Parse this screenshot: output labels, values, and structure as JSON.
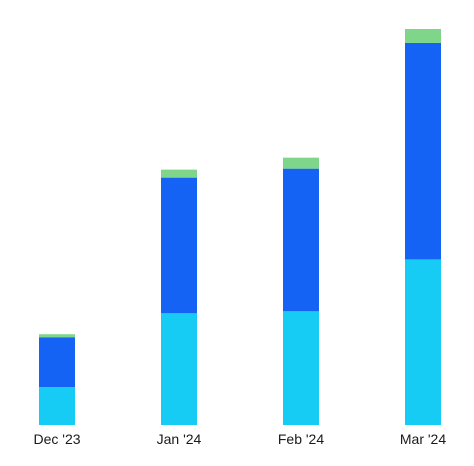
{
  "chart_data": {
    "type": "bar",
    "stacked": true,
    "categories": [
      "Dec '23",
      "Jan '24",
      "Feb '24",
      "Mar '24"
    ],
    "series": [
      {
        "color": "#16CCF5",
        "values": [
          38,
          112,
          114,
          166
        ]
      },
      {
        "color": "#1463F5",
        "values": [
          50,
          136,
          143,
          217
        ]
      },
      {
        "color": "#7FD68A",
        "values": [
          3,
          8,
          11,
          14
        ]
      }
    ],
    "ylim": [
      0,
      400
    ],
    "grid": false,
    "legend": "none"
  }
}
